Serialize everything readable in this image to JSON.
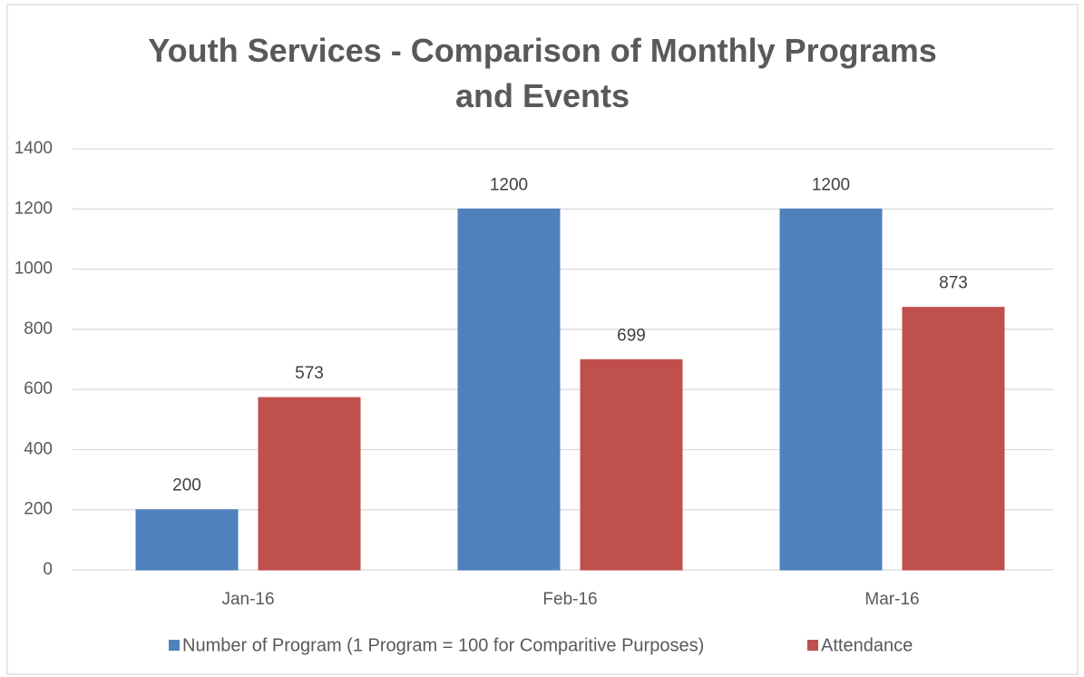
{
  "chart_data": {
    "type": "bar",
    "title": "Youth Services - Comparison of Monthly Programs and Events",
    "categories": [
      "Jan-16",
      "Feb-16",
      "Mar-16"
    ],
    "series": [
      {
        "name": "Number of Program (1 Program = 100 for Comparitive Purposes)",
        "color": "#4f81bd",
        "values": [
          200,
          1200,
          1200
        ]
      },
      {
        "name": "Attendance",
        "color": "#c0504d",
        "values": [
          573,
          699,
          873
        ]
      }
    ],
    "ylim": [
      0,
      1400
    ],
    "yticks": [
      0,
      200,
      400,
      600,
      800,
      1000,
      1200,
      1400
    ],
    "grid": true,
    "legend": "bottom"
  }
}
